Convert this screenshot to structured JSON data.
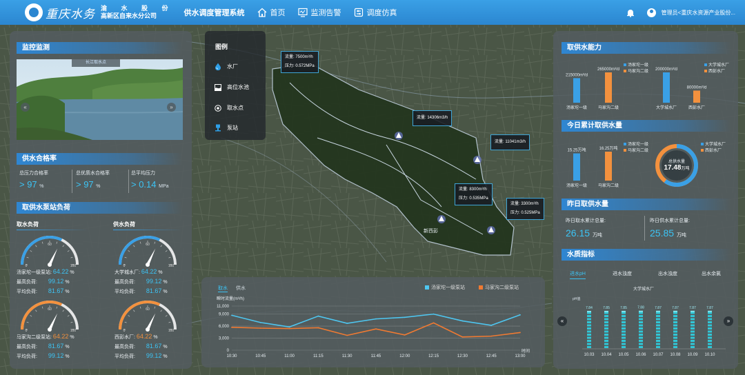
{
  "header": {
    "logo_script": "重庆水务",
    "company_line1": "渝 水 股 份",
    "company_line2": "高新区自来水分公司",
    "system_title": "供水调度管理系统",
    "nav": [
      {
        "label": "首页",
        "icon": "home-icon"
      },
      {
        "label": "监测告警",
        "icon": "monitor-icon"
      },
      {
        "label": "调度仿真",
        "icon": "simulation-icon"
      }
    ],
    "user": "管理员<重庆水资源产业股份..."
  },
  "left": {
    "monitor": {
      "title": "监控监测",
      "caption": "长江取水点"
    },
    "quality_rate": {
      "title": "供水合格率",
      "items": [
        {
          "label": "总压力合格率",
          "value": "> 97",
          "unit": "%"
        },
        {
          "label": "总优质水合格率",
          "value": "> 97",
          "unit": "%"
        },
        {
          "label": "总平均压力",
          "value": "> 0.14",
          "unit": "MPa"
        }
      ]
    },
    "pump_load": {
      "title": "取供水泵站负荷",
      "intake_title": "取水负荷",
      "supply_title": "供水负荷",
      "gauge_scale": {
        "min": "0",
        "mid": "60",
        "max": "100"
      },
      "gauges": [
        {
          "name": "汤家坨一级泵站:",
          "value": "64.22",
          "unit": "%",
          "max_label": "最高负荷:",
          "max": "99.12",
          "avg_label": "平均负荷:",
          "avg": "81.67",
          "level": 0.6422,
          "color": "#3aa0e6"
        },
        {
          "name": "大学城水厂:",
          "value": "64.22",
          "unit": "%",
          "max_label": "最高负荷:",
          "max": "99.12",
          "avg_label": "平均负荷:",
          "avg": "81.67",
          "level": 0.6422,
          "color": "#3aa0e6"
        },
        {
          "name": "马家沟二级泵站:",
          "value": "64.22",
          "unit": "%",
          "max_label": "最高负荷:",
          "max": "81.67",
          "avg_label": "平均负荷:",
          "avg": "99.12",
          "level": 0.6422,
          "color": "#f3913e"
        },
        {
          "name": "西彭水厂:",
          "value": "64.22",
          "unit": "%",
          "max_label": "最高负荷:",
          "max": "81.67",
          "avg_label": "平均负荷:",
          "avg": "99.12",
          "level": 0.6422,
          "color": "#f3913e"
        }
      ]
    }
  },
  "legend": {
    "title": "图例",
    "items": [
      {
        "label": "水厂",
        "icon": "water-drop-icon"
      },
      {
        "label": "高位水池",
        "icon": "reservoir-icon"
      },
      {
        "label": "取水点",
        "icon": "intake-icon"
      },
      {
        "label": "泵站",
        "icon": "pump-icon"
      }
    ]
  },
  "map": {
    "popups": [
      {
        "lines": [
          "流量: 7500m³/h",
          "压力: 0.572MPa"
        ]
      },
      {
        "lines": [
          "流量: 14306m3/h"
        ]
      },
      {
        "lines": [
          "流量: 11041m3/h"
        ]
      },
      {
        "lines": [
          "流量: 8300m³/h",
          "压力: 0.535MPa"
        ]
      },
      {
        "lines": [
          "流量: 3300m³/h",
          "压力: 0.525MPa"
        ]
      }
    ],
    "place_label": "新西彭"
  },
  "flow_chart": {
    "tabs": [
      "取水",
      "供水"
    ],
    "active_tab": "取水",
    "y_title": "瞬时流量(m³/h)",
    "x_title": "时间",
    "colors": {
      "series1": "#4ec6f0",
      "series2": "#f07a32"
    },
    "chart_data": {
      "type": "line",
      "x": [
        "10:30",
        "10:45",
        "11:00",
        "11:15",
        "11:30",
        "11:45",
        "12:00",
        "12:15",
        "12:30",
        "12:45",
        "13:00"
      ],
      "ylim": [
        0,
        11000
      ],
      "yticks": [
        "0",
        "3,000",
        "6,000",
        "9,000",
        "11,000"
      ],
      "grid": true,
      "series": [
        {
          "name": "汤家坨一级泵站",
          "values": [
            8700,
            6900,
            5800,
            8500,
            6700,
            7800,
            8200,
            9000,
            7300,
            6200,
            8800
          ]
        },
        {
          "name": "马家沟二级泵站",
          "values": [
            5700,
            5500,
            5400,
            5600,
            3700,
            5300,
            3800,
            6800,
            3300,
            3500,
            4400
          ]
        }
      ]
    }
  },
  "right": {
    "capacity": {
      "title": "取供水能力",
      "legend_left": [
        "汤家坨一级",
        "马家沟二级"
      ],
      "legend_right": [
        "大学城水厂",
        "西彭水厂"
      ],
      "left_bars": [
        {
          "label": "汤家坨一级",
          "value": "215000m³/d",
          "level": 0.81,
          "color": "#3aa0e6"
        },
        {
          "label": "马家沟二级",
          "value": "265000m³/d",
          "level": 1.0,
          "color": "#f3913e"
        }
      ],
      "right_bars": [
        {
          "label": "大学城水厂",
          "value": "200000m³/d",
          "level": 1.0,
          "color": "#3aa0e6"
        },
        {
          "label": "西彭水厂",
          "value": "80000m³/d",
          "level": 0.4,
          "color": "#f3913e"
        }
      ]
    },
    "today": {
      "title": "今日累计取供水量",
      "legend_left": [
        "汤家坨一级",
        "马家沟二级"
      ],
      "legend_right": [
        "大学城水厂",
        "西彭水厂"
      ],
      "left_bars": [
        {
          "label": "汤家坨一级",
          "value": "15.25万吨",
          "level": 0.94,
          "color": "#3aa0e6"
        },
        {
          "label": "马家沟二级",
          "value": "16.25万吨",
          "level": 1.0,
          "color": "#f3913e"
        }
      ],
      "donut": {
        "label": "总供水量",
        "value": "17.48",
        "unit": "万吨",
        "share_blue": 0.6,
        "share_orange": 0.4
      }
    },
    "yesterday": {
      "title": "昨日取供水量",
      "items": [
        {
          "label": "昨日取水累计总量:",
          "value": "26.15",
          "unit": "万吨"
        },
        {
          "label": "昨日供水累计总量:",
          "value": "25.85",
          "unit": "万吨"
        }
      ]
    },
    "water_quality": {
      "title": "水质指标",
      "tabs": [
        "进水pH",
        "进水浊度",
        "出水浊度",
        "出水余氯"
      ],
      "active_tab": "进水pH",
      "chart_title": "大学城水厂",
      "y_title": "pH值",
      "chart_data": {
        "type": "bar",
        "categories": [
          "10.03",
          "10.04",
          "10.05",
          "10.06",
          "10.07",
          "10.08",
          "10.09",
          "10.10"
        ],
        "values": [
          7.84,
          7.85,
          7.85,
          7.88,
          7.87,
          7.87,
          7.87,
          7.87
        ],
        "value_labels": [
          "7.84",
          "7.85",
          "7.85",
          "7.88",
          "7.87",
          "7.87",
          "7.87",
          "7.87"
        ],
        "ylim": [
          0,
          9
        ]
      }
    }
  }
}
